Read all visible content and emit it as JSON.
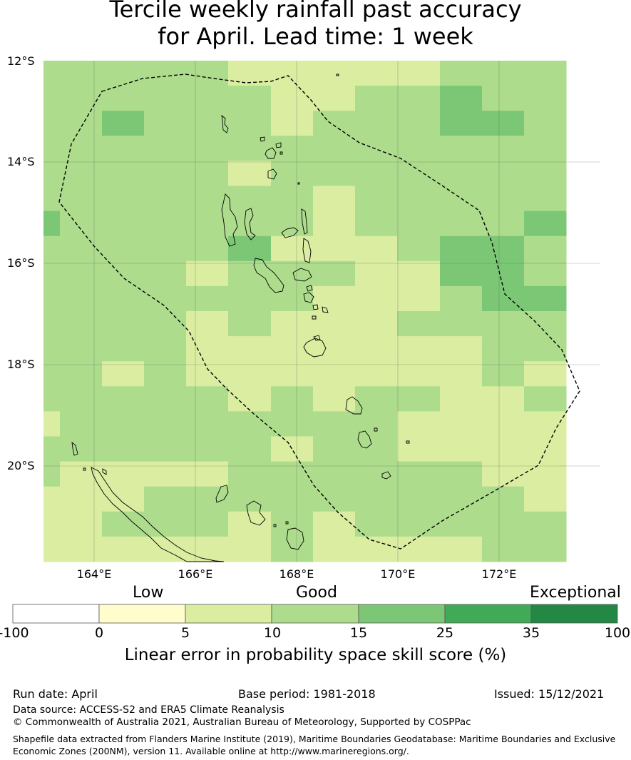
{
  "title_line1": "Tercile weekly rainfall past accuracy",
  "title_line2": "for April. Lead time: 1 week",
  "lat_labels": [
    "12°S",
    "14°S",
    "16°S",
    "18°S",
    "20°S"
  ],
  "lon_labels": [
    "164°E",
    "166°E",
    "168°E",
    "170°E",
    "172°E"
  ],
  "categories": {
    "low": "Low",
    "good": "Good",
    "exceptional": "Exceptional"
  },
  "colorbar": {
    "ticks": [
      "-100",
      "0",
      "5",
      "10",
      "15",
      "25",
      "35",
      "100"
    ],
    "colors": [
      "#ffffff",
      "#fffdcb",
      "#dbeda1",
      "#aedc8d",
      "#7bc775",
      "#41aa56",
      "#228844"
    ],
    "label": "Linear error in probability space skill score (%)"
  },
  "footer": {
    "run_date": "Run date: April",
    "base_period": "Base period: 1981-2018",
    "issued": "Issued: 15/12/2021",
    "data_source": "Data source: ACCESS-S2 and ERA5 Climate Reanalysis",
    "copyright": "© Commonwealth of Australia 2021, Australian Bureau of Meteorology, Supported by COSPPac",
    "shapefile": "Shapefile data extracted from Flanders Marine Institute (2019), Maritime Boundaries Geodatabase: Maritime Boundaries and Exclusive Economic Zones (200NM), version 11. Available online at http://www.marineregions.org/."
  },
  "grid_categories": [
    [
      3,
      3,
      3,
      3,
      3,
      2,
      2,
      2,
      2,
      2,
      3,
      3,
      3
    ],
    [
      3,
      3,
      3,
      3,
      3,
      3,
      2,
      2,
      3,
      3,
      4,
      3,
      3
    ],
    [
      3,
      3,
      4,
      3,
      3,
      3,
      2,
      3,
      3,
      3,
      4,
      4,
      3
    ],
    [
      3,
      3,
      3,
      3,
      3,
      3,
      3,
      3,
      3,
      3,
      3,
      3,
      3
    ],
    [
      3,
      3,
      3,
      3,
      3,
      2,
      3,
      3,
      3,
      3,
      3,
      3,
      3
    ],
    [
      3,
      3,
      3,
      3,
      3,
      3,
      3,
      2,
      3,
      3,
      3,
      3,
      3
    ],
    [
      4,
      3,
      3,
      3,
      3,
      3,
      3,
      2,
      3,
      3,
      3,
      3,
      4
    ],
    [
      3,
      3,
      3,
      3,
      3,
      4,
      2,
      2,
      2,
      3,
      4,
      4,
      3
    ],
    [
      3,
      3,
      3,
      3,
      2,
      3,
      3,
      3,
      2,
      2,
      4,
      4,
      3
    ],
    [
      3,
      3,
      3,
      3,
      3,
      3,
      3,
      2,
      2,
      2,
      3,
      4,
      4
    ],
    [
      3,
      3,
      3,
      3,
      2,
      3,
      2,
      2,
      2,
      3,
      3,
      3,
      3
    ],
    [
      3,
      3,
      3,
      3,
      2,
      2,
      2,
      2,
      2,
      2,
      2,
      3,
      3
    ],
    [
      3,
      3,
      2,
      3,
      2,
      2,
      2,
      2,
      2,
      2,
      2,
      3,
      2
    ],
    [
      3,
      3,
      3,
      3,
      3,
      2,
      3,
      2,
      3,
      3,
      2,
      2,
      3
    ],
    [
      2,
      3,
      3,
      3,
      3,
      3,
      3,
      3,
      3,
      2,
      2,
      2,
      2
    ],
    [
      3,
      3,
      3,
      3,
      3,
      3,
      2,
      3,
      3,
      2,
      2,
      2,
      2
    ],
    [
      3,
      2,
      2,
      2,
      2,
      3,
      3,
      3,
      3,
      3,
      3,
      2,
      2
    ],
    [
      2,
      2,
      2,
      3,
      3,
      3,
      3,
      3,
      3,
      3,
      3,
      3,
      2
    ],
    [
      2,
      2,
      3,
      3,
      3,
      2,
      3,
      2,
      3,
      3,
      3,
      3,
      3
    ],
    [
      2,
      2,
      2,
      2,
      2,
      2,
      3,
      2,
      2,
      2,
      2,
      3,
      3
    ]
  ]
}
